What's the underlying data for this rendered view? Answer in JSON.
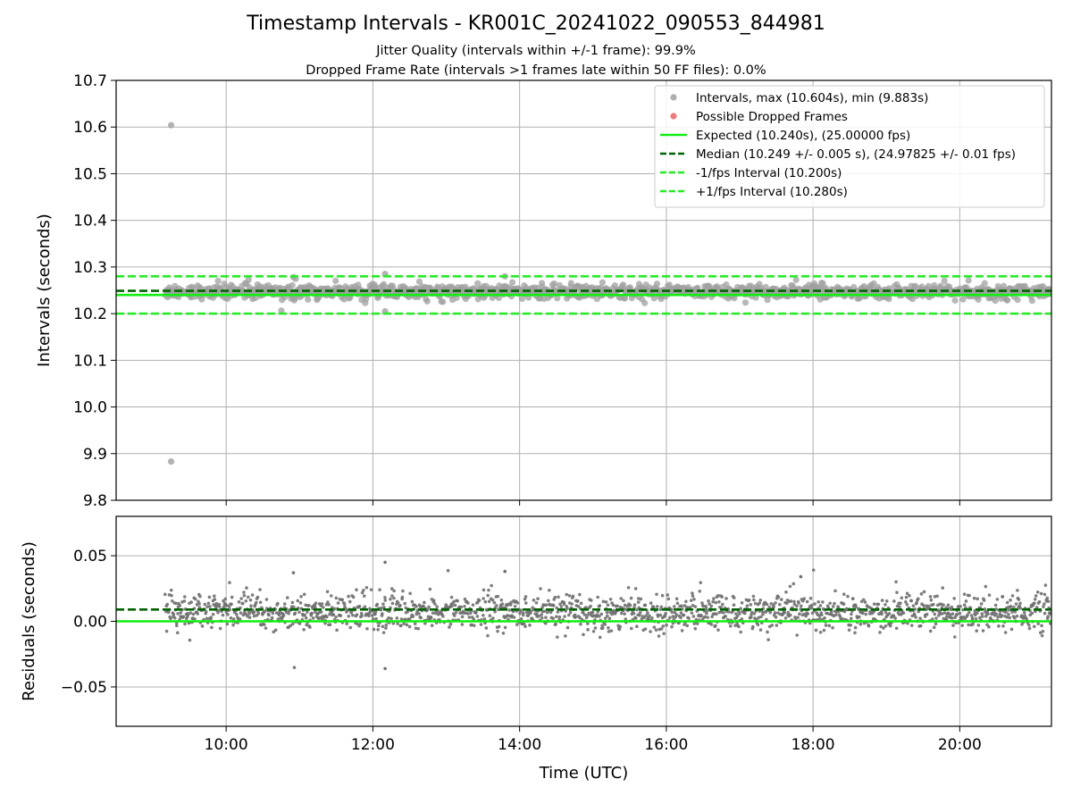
{
  "chart_data": [
    {
      "type": "scatter",
      "panel": "intervals",
      "title": "Timestamp Intervals - KR001C_20241022_090553_844981",
      "subtitle_lines": [
        "Jitter Quality (intervals within +/-1 frame): 99.9%",
        "Dropped Frame Rate (intervals >1 frames late within 50 FF files): 0.0%"
      ],
      "ylabel": "Intervals (seconds)",
      "xlim": [
        "08:30",
        "21:15"
      ],
      "ylim": [
        9.8,
        10.7
      ],
      "yticks": [
        "10.7",
        "10.6",
        "10.5",
        "10.4",
        "10.3",
        "10.2",
        "10.1",
        "10.0",
        "9.9",
        "9.8"
      ],
      "ytick_values": [
        10.7,
        10.6,
        10.5,
        10.4,
        10.3,
        10.2,
        10.1,
        10.0,
        9.9,
        9.8
      ],
      "grid": true,
      "legend_placement": "upper-right",
      "series": [
        {
          "name": "Intervals, max (10.604s), min (9.883s)",
          "kind": "scatter",
          "color": "#a0a0a0",
          "x_range": [
            "09:10",
            "21:15"
          ],
          "center": 10.247,
          "spread": 0.008,
          "outliers": [
            {
              "x": "09:15",
              "y": 10.604
            },
            {
              "x": "09:15",
              "y": 9.883
            },
            {
              "x": "12:10",
              "y": 10.285
            },
            {
              "x": "12:10",
              "y": 10.205
            },
            {
              "x": "10:55",
              "y": 10.278
            },
            {
              "x": "13:48",
              "y": 10.28
            }
          ]
        },
        {
          "name": "Possible Dropped Frames",
          "kind": "scatter",
          "color": "#f06060"
        },
        {
          "name": "Expected (10.240s), (25.00000 fps)",
          "kind": "hline",
          "y": 10.24,
          "color": "#11ee11",
          "style": "solid"
        },
        {
          "name": "Median (10.249 +/- 0.005 s), (24.97825 +/- 0.01 fps)",
          "kind": "hline",
          "y": 10.249,
          "color": "#006400",
          "style": "dashed"
        },
        {
          "name": "-1/fps Interval (10.200s)",
          "kind": "hline",
          "y": 10.2,
          "color": "#22ee22",
          "style": "dashed"
        },
        {
          "name": "+1/fps Interval (10.280s)",
          "kind": "hline",
          "y": 10.28,
          "color": "#22ee22",
          "style": "dashed"
        }
      ]
    },
    {
      "type": "scatter",
      "panel": "residuals",
      "xlabel": "Time (UTC)",
      "ylabel": "Residuals (seconds)",
      "xlim": [
        "08:30",
        "21:15"
      ],
      "xticks": [
        "10:00",
        "12:00",
        "14:00",
        "16:00",
        "18:00",
        "20:00"
      ],
      "ylim": [
        -0.08,
        0.08
      ],
      "yticks": [
        "0.05",
        "0.00",
        "−0.05"
      ],
      "ytick_values": [
        0.05,
        0.0,
        -0.05
      ],
      "grid": true,
      "series": [
        {
          "kind": "scatter",
          "color": "#707070",
          "x_range": [
            "09:10",
            "21:15"
          ],
          "center": 0.007,
          "spread": 0.008,
          "outliers": [
            {
              "x": "12:10",
              "y": 0.045
            },
            {
              "x": "12:10",
              "y": -0.036
            },
            {
              "x": "13:48",
              "y": 0.038
            },
            {
              "x": "10:55",
              "y": 0.037
            },
            {
              "x": "17:50",
              "y": 0.034
            }
          ]
        },
        {
          "kind": "hline",
          "y": 0.0,
          "color": "#11ee11",
          "style": "solid"
        },
        {
          "kind": "hline",
          "y": 0.009,
          "color": "#006400",
          "style": "dashed"
        }
      ]
    }
  ]
}
